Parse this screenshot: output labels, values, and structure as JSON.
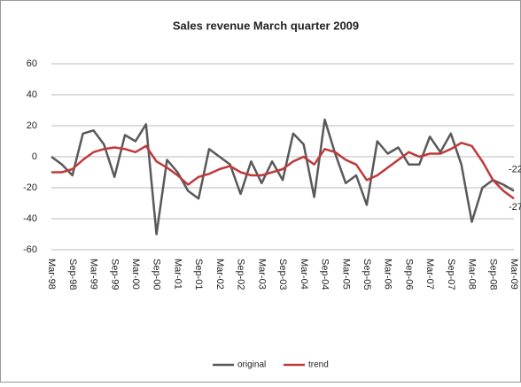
{
  "chart_data": {
    "type": "line",
    "title": "Sales revenue March quarter 2009",
    "categories": [
      "Mar-98",
      null,
      "Sep-98",
      null,
      "Mar-99",
      null,
      "Sep-99",
      null,
      "Mar-00",
      null,
      "Sep-00",
      null,
      "Mar-01",
      null,
      "Sep-01",
      null,
      "Mar-02",
      null,
      "Sep-02",
      null,
      "Mar-03",
      null,
      "Sep-03",
      null,
      "Mar-04",
      null,
      "Sep-04",
      null,
      "Mar-05",
      null,
      "Sep-05",
      null,
      "Mar-06",
      null,
      "Sep-06",
      null,
      "Mar-07",
      null,
      "Sep-07",
      null,
      "Mar-08",
      null,
      "Sep-08",
      null,
      "Mar-09"
    ],
    "series": [
      {
        "name": "original",
        "color": "#595959",
        "values": [
          0,
          -5,
          -12,
          15,
          17,
          8,
          -13,
          14,
          10,
          21,
          -50,
          -2,
          -10,
          -22,
          -27,
          5,
          0,
          -5,
          -24,
          -3,
          -17,
          -3,
          -15,
          15,
          8,
          -26,
          24,
          2,
          -17,
          -12,
          -31,
          10,
          2,
          6,
          -5,
          -5,
          13,
          3,
          15,
          -5,
          -42,
          -20,
          -15,
          -18,
          -22
        ]
      },
      {
        "name": "trend",
        "color": "#c0393b",
        "values": [
          -10,
          -10,
          -8,
          -2,
          3,
          5,
          6,
          5,
          3,
          7,
          -3,
          -7,
          -12,
          -18,
          -13,
          -11,
          -8,
          -6,
          -10,
          -12,
          -12,
          -10,
          -8,
          -3,
          0,
          -5,
          5,
          3,
          -2,
          -5,
          -15,
          -12,
          -7,
          -2,
          3,
          0,
          2,
          2,
          5,
          9,
          7,
          -3,
          -15,
          -22,
          -27
        ]
      }
    ],
    "ylim": [
      -60,
      60
    ],
    "yticks": [
      -60,
      -40,
      -20,
      0,
      20,
      40,
      60
    ],
    "grid": true,
    "legend": "bottom"
  }
}
